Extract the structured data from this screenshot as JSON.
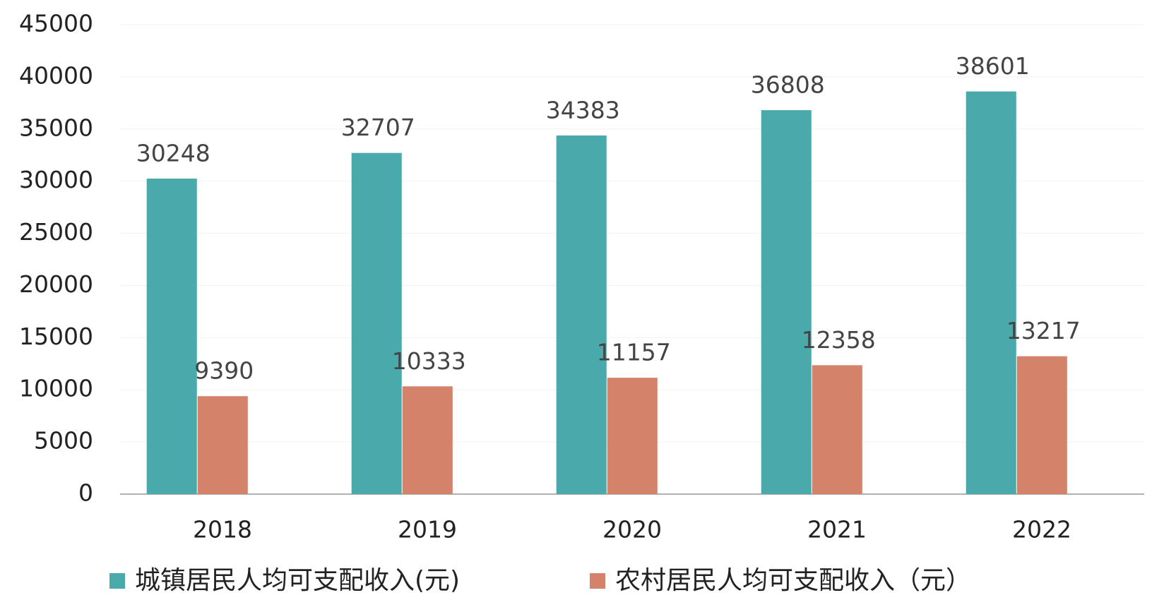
{
  "chart_data": {
    "type": "bar",
    "categories": [
      "2018",
      "2019",
      "2020",
      "2021",
      "2022"
    ],
    "series": [
      {
        "name": "城镇居民人均可支配收入(元)",
        "color": "#4aa9aa",
        "values": [
          30248,
          32707,
          34383,
          36808,
          38601
        ]
      },
      {
        "name": "农村居民人均可支配收入（元）",
        "color": "#d4826a",
        "values": [
          9390,
          10333,
          11157,
          12358,
          13217
        ]
      }
    ],
    "ylim": [
      0,
      45000
    ],
    "yticks": [
      0,
      5000,
      10000,
      15000,
      20000,
      25000,
      30000,
      35000,
      40000,
      45000
    ],
    "grid": true
  }
}
